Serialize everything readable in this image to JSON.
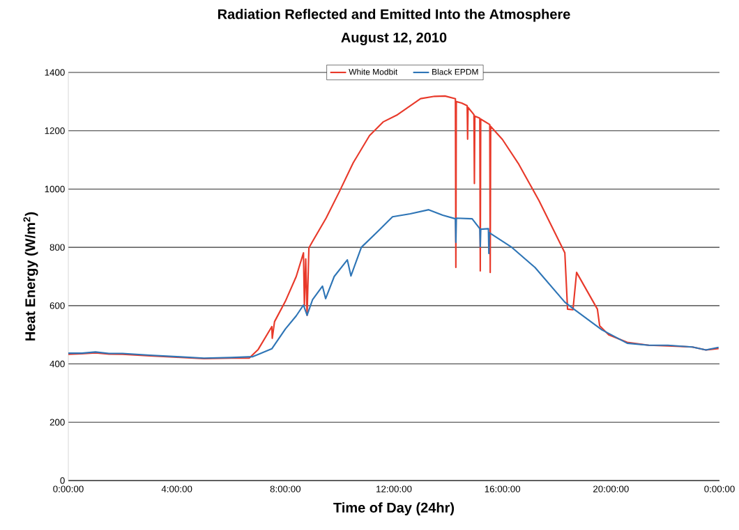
{
  "chart_data": {
    "type": "line",
    "title": "Radiation  Reflected and Emitted Into the Atmosphere",
    "subtitle": "August 12, 2010",
    "xlabel": "Time of Day (24hr)",
    "ylabel": "Heat Energy (W/m$^{2}$)",
    "xlim": [
      "2010-08-12T00:00",
      "2010-08-13T00:00"
    ],
    "xticks": [
      {
        "value": "2010-08-12T00:00",
        "label": "0:00:00"
      },
      {
        "value": "2010-08-12T04:00",
        "label": "4:00:00"
      },
      {
        "value": "2010-08-12T08:00",
        "label": "8:00:00"
      },
      {
        "value": "2010-08-12T12:00",
        "label": "12:00:00"
      },
      {
        "value": "2010-08-12T16:00",
        "label": "16:00:00"
      },
      {
        "value": "2010-08-12T20:00",
        "label": "20:00:00"
      },
      {
        "value": "2010-08-13T00:00",
        "label": "0:00:00"
      }
    ],
    "ylim": [
      0,
      1400
    ],
    "yticks": [
      0,
      200,
      400,
      600,
      800,
      1000,
      1200,
      1400
    ],
    "grid": "y",
    "legend": "top",
    "marker": "none",
    "series": [
      {
        "name": "White Modbit",
        "color": "#e8392a",
        "x": [
          "2010-08-12T00:00",
          "2010-08-12T00:30",
          "2010-08-12T01:00",
          "2010-08-12T01:30",
          "2010-08-12T02:00",
          "2010-08-12T03:00",
          "2010-08-12T04:00",
          "2010-08-12T05:00",
          "2010-08-12T06:00",
          "2010-08-12T06:40",
          "2010-08-12T07:00",
          "2010-08-12T07:30",
          "2010-08-12T07:31",
          "2010-08-12T07:36",
          "2010-08-12T08:00",
          "2010-08-12T08:24",
          "2010-08-12T08:40",
          "2010-08-12T08:42",
          "2010-08-12T08:45",
          "2010-08-12T08:48",
          "2010-08-12T08:52",
          "2010-08-12T09:00",
          "2010-08-12T09:30",
          "2010-08-12T10:00",
          "2010-08-12T10:30",
          "2010-08-12T11:06",
          "2010-08-12T11:36",
          "2010-08-12T12:08",
          "2010-08-12T12:59",
          "2010-08-12T13:30",
          "2010-08-12T13:53",
          "2010-08-12T14:16",
          "2010-08-12T14:17",
          "2010-08-12T14:18",
          "2010-08-12T14:30",
          "2010-08-12T14:42",
          "2010-08-12T14:43",
          "2010-08-12T14:44",
          "2010-08-12T14:57",
          "2010-08-12T14:58",
          "2010-08-12T14:59",
          "2010-08-12T15:10",
          "2010-08-12T15:11",
          "2010-08-12T15:12",
          "2010-08-12T15:32",
          "2010-08-12T15:33",
          "2010-08-12T15:34",
          "2010-08-12T16:00",
          "2010-08-12T16:35",
          "2010-08-12T17:21",
          "2010-08-12T18:18",
          "2010-08-12T18:24",
          "2010-08-12T18:36",
          "2010-08-12T18:44",
          "2010-08-12T19:30",
          "2010-08-12T19:35",
          "2010-08-12T19:55",
          "2010-08-12T20:36",
          "2010-08-12T21:24",
          "2010-08-12T22:06",
          "2010-08-12T23:00",
          "2010-08-12T23:30",
          "2010-08-12T23:58"
        ],
        "values": [
          433,
          435,
          438,
          434,
          433,
          428,
          423,
          418,
          420,
          420,
          450,
          528,
          488,
          545,
          615,
          700,
          781,
          600,
          760,
          567,
          798,
          820,
          900,
          993,
          1090,
          1183,
          1230,
          1255,
          1310,
          1318,
          1319,
          1310,
          731,
          1300,
          1295,
          1286,
          1171,
          1280,
          1255,
          1019,
          1250,
          1243,
          719,
          1240,
          1221,
          714,
          1215,
          1170,
          1088,
          960,
          781,
          588,
          586,
          714,
          588,
          531,
          500,
          474,
          464,
          462,
          458,
          448,
          453
        ]
      },
      {
        "name": "Black EPDM",
        "color": "#2e75b6",
        "x": [
          "2010-08-12T00:00",
          "2010-08-12T00:30",
          "2010-08-12T01:00",
          "2010-08-12T01:30",
          "2010-08-12T02:00",
          "2010-08-12T03:00",
          "2010-08-12T04:00",
          "2010-08-12T05:00",
          "2010-08-12T06:00",
          "2010-08-12T06:48",
          "2010-08-12T07:30",
          "2010-08-12T08:00",
          "2010-08-12T08:24",
          "2010-08-12T08:40",
          "2010-08-12T08:48",
          "2010-08-12T09:00",
          "2010-08-12T09:22",
          "2010-08-12T09:29",
          "2010-08-12T09:48",
          "2010-08-12T10:17",
          "2010-08-12T10:25",
          "2010-08-12T10:48",
          "2010-08-12T11:26",
          "2010-08-12T11:57",
          "2010-08-12T12:36",
          "2010-08-12T13:17",
          "2010-08-12T13:48",
          "2010-08-12T14:16",
          "2010-08-12T14:17",
          "2010-08-12T14:18",
          "2010-08-12T14:53",
          "2010-08-12T15:10",
          "2010-08-12T15:11",
          "2010-08-12T15:12",
          "2010-08-12T15:29",
          "2010-08-12T15:30",
          "2010-08-12T15:31",
          "2010-08-12T16:19",
          "2010-08-12T17:12",
          "2010-08-12T18:18",
          "2010-08-12T18:38",
          "2010-08-12T19:40",
          "2010-08-12T20:36",
          "2010-08-12T21:24",
          "2010-08-12T22:06",
          "2010-08-12T23:00",
          "2010-08-12T23:30",
          "2010-08-12T23:58"
        ],
        "values": [
          437,
          437,
          441,
          436,
          436,
          430,
          425,
          420,
          422,
          425,
          452,
          520,
          565,
          602,
          567,
          620,
          667,
          624,
          700,
          757,
          702,
          800,
          857,
          905,
          915,
          929,
          910,
          898,
          817,
          900,
          898,
          864,
          802,
          862,
          864,
          779,
          850,
          802,
          731,
          612,
          588,
          517,
          471,
          464,
          464,
          458,
          448,
          457
        ]
      }
    ]
  }
}
